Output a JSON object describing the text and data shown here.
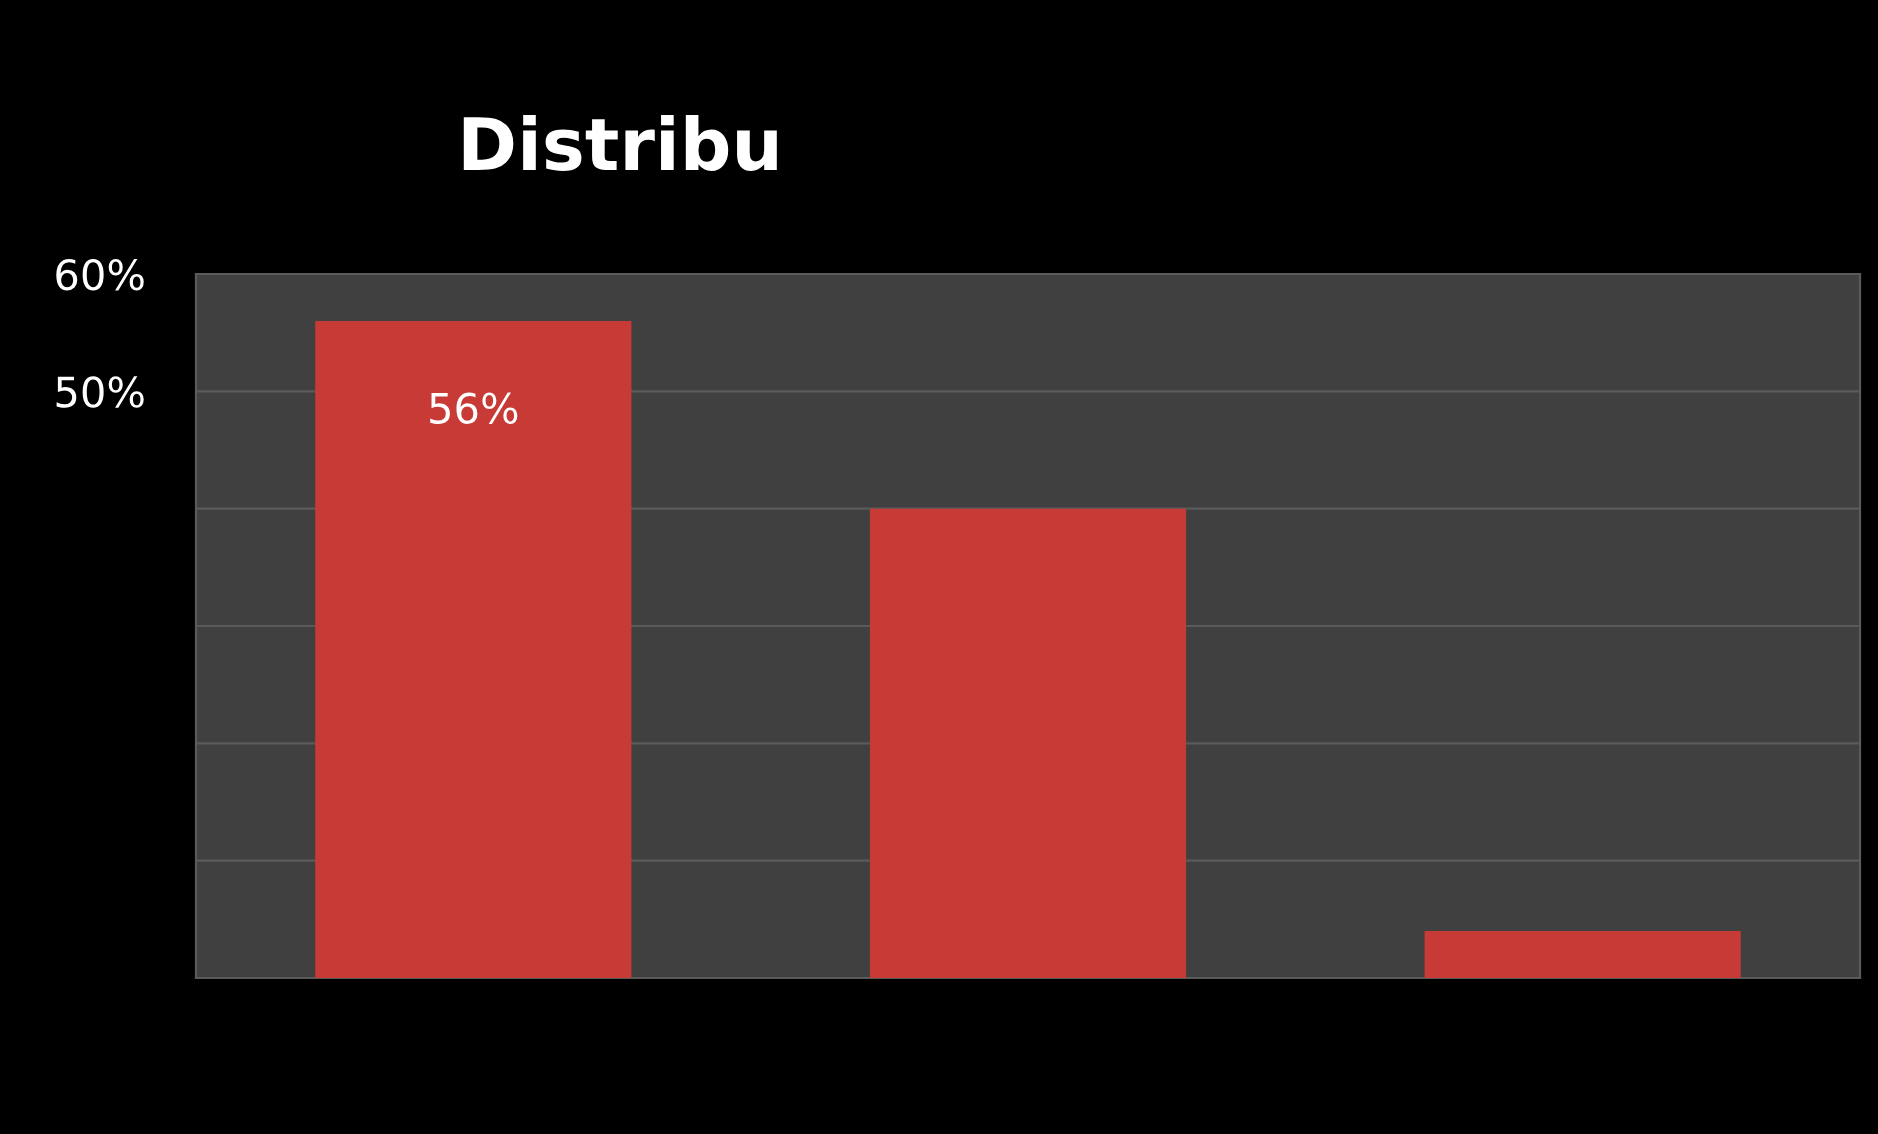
{
  "chart_data": {
    "type": "bar",
    "title": "Distribu",
    "categories": [
      null,
      null,
      null
    ],
    "values": [
      56,
      40,
      4
    ],
    "value_labels": [
      "56%",
      null,
      null
    ],
    "color": "#c83a36",
    "ylim": [
      0,
      60
    ],
    "yticks": [
      {
        "value": 0,
        "label": null
      },
      {
        "value": 10,
        "label": null
      },
      {
        "value": 20,
        "label": null
      },
      {
        "value": 30,
        "label": null
      },
      {
        "value": 40,
        "label": null
      },
      {
        "value": 50,
        "label": "50%"
      },
      {
        "value": 60,
        "label": "60%"
      }
    ],
    "grid": "y",
    "legend": false
  }
}
